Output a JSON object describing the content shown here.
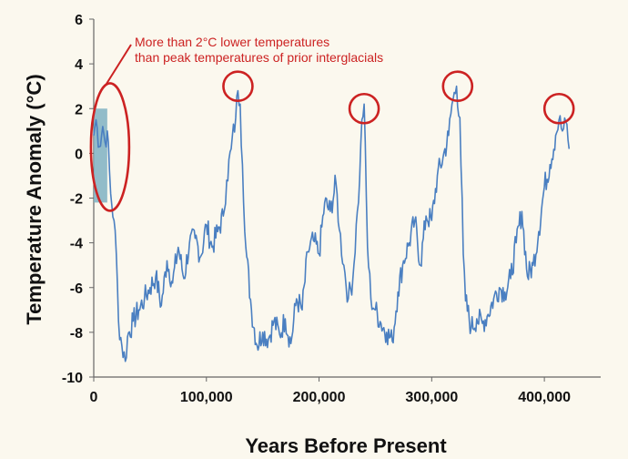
{
  "chart_data": {
    "type": "line",
    "title": "",
    "xlabel": "Years Before Present",
    "ylabel": "Temperature Anomaly (°C)",
    "xlim": [
      0,
      450000
    ],
    "ylim": [
      -10,
      6
    ],
    "x_ticks": [
      0,
      100000,
      200000,
      300000,
      400000
    ],
    "x_tick_labels": [
      "0",
      "100,000",
      "200,000",
      "300,000",
      "400,000"
    ],
    "y_ticks": [
      -10,
      -8,
      -6,
      -4,
      -2,
      0,
      2,
      4,
      6
    ],
    "y_tick_labels": [
      "-10",
      "-8",
      "-6",
      "-4",
      "-2",
      "0",
      "2",
      "4",
      "6"
    ],
    "series": [
      {
        "name": "Temperature anomaly",
        "color": "#4a7fc1",
        "x": [
          0,
          2000,
          5000,
          8000,
          10000,
          12000,
          15000,
          18000,
          20000,
          22000,
          25000,
          28000,
          30000,
          35000,
          40000,
          45000,
          50000,
          55000,
          60000,
          65000,
          70000,
          75000,
          80000,
          85000,
          90000,
          95000,
          100000,
          105000,
          110000,
          115000,
          118000,
          122000,
          126000,
          128000,
          130000,
          132000,
          135000,
          140000,
          145000,
          150000,
          155000,
          160000,
          165000,
          170000,
          175000,
          180000,
          185000,
          190000,
          195000,
          200000,
          205000,
          210000,
          215000,
          218000,
          222000,
          226000,
          230000,
          234000,
          236000,
          238000,
          240000,
          243000,
          246000,
          250000,
          255000,
          260000,
          265000,
          270000,
          275000,
          280000,
          285000,
          290000,
          295000,
          300000,
          305000,
          310000,
          315000,
          318000,
          322000,
          325000,
          328000,
          330000,
          335000,
          340000,
          345000,
          350000,
          355000,
          360000,
          365000,
          370000,
          375000,
          380000,
          385000,
          390000,
          395000,
          400000,
          405000,
          410000,
          413000,
          416000,
          420000,
          422000
        ],
        "values": [
          0.8,
          1.5,
          0.3,
          1.2,
          0.5,
          1.0,
          -1.8,
          -3.0,
          -4.5,
          -7.5,
          -8.6,
          -9.3,
          -8.2,
          -7.5,
          -7.0,
          -6.5,
          -6.0,
          -5.5,
          -6.8,
          -4.8,
          -5.8,
          -4.2,
          -5.6,
          -4.0,
          -3.8,
          -4.6,
          -3.2,
          -4.2,
          -3.5,
          -2.8,
          -1.2,
          0.2,
          1.6,
          2.8,
          2.2,
          -0.5,
          -4.2,
          -7.0,
          -8.6,
          -8.0,
          -8.3,
          -7.5,
          -8.1,
          -7.4,
          -8.5,
          -6.5,
          -7.0,
          -4.4,
          -3.9,
          -4.5,
          -2.2,
          -2.6,
          -1.3,
          -3.4,
          -5.0,
          -6.5,
          -5.6,
          -2.6,
          -1.2,
          1.5,
          2.2,
          -4.2,
          -6.5,
          -7.0,
          -7.6,
          -8.0,
          -8.4,
          -6.2,
          -4.8,
          -4.0,
          -3.0,
          -5.0,
          -2.8,
          -3.0,
          -1.0,
          -0.2,
          0.8,
          2.2,
          3.0,
          1.6,
          -4.5,
          -6.6,
          -7.8,
          -7.4,
          -7.6,
          -7.2,
          -6.5,
          -6.0,
          -6.2,
          -5.6,
          -4.0,
          -2.6,
          -5.5,
          -5.0,
          -3.5,
          -1.5,
          -0.5,
          0.8,
          1.5,
          1.0,
          1.3,
          0.2
        ]
      }
    ],
    "highlight_bar": {
      "x_start": 0,
      "x_end": 12000,
      "y_low": -2.2,
      "y_high": 2.0,
      "color": "#7fb2c2"
    },
    "annotations": [
      {
        "text_lines": [
          "More than 2°C lower temperatures",
          "than peak temperatures of prior interglacials"
        ],
        "color": "#cc2222"
      }
    ],
    "annotation_ellipse": {
      "x": 8000,
      "y": 0.2,
      "color": "#cc2222"
    },
    "peak_circles": [
      {
        "x": 128000,
        "y": 3.0
      },
      {
        "x": 240000,
        "y": 2.0
      },
      {
        "x": 323000,
        "y": 3.0
      },
      {
        "x": 413000,
        "y": 2.0
      }
    ]
  }
}
